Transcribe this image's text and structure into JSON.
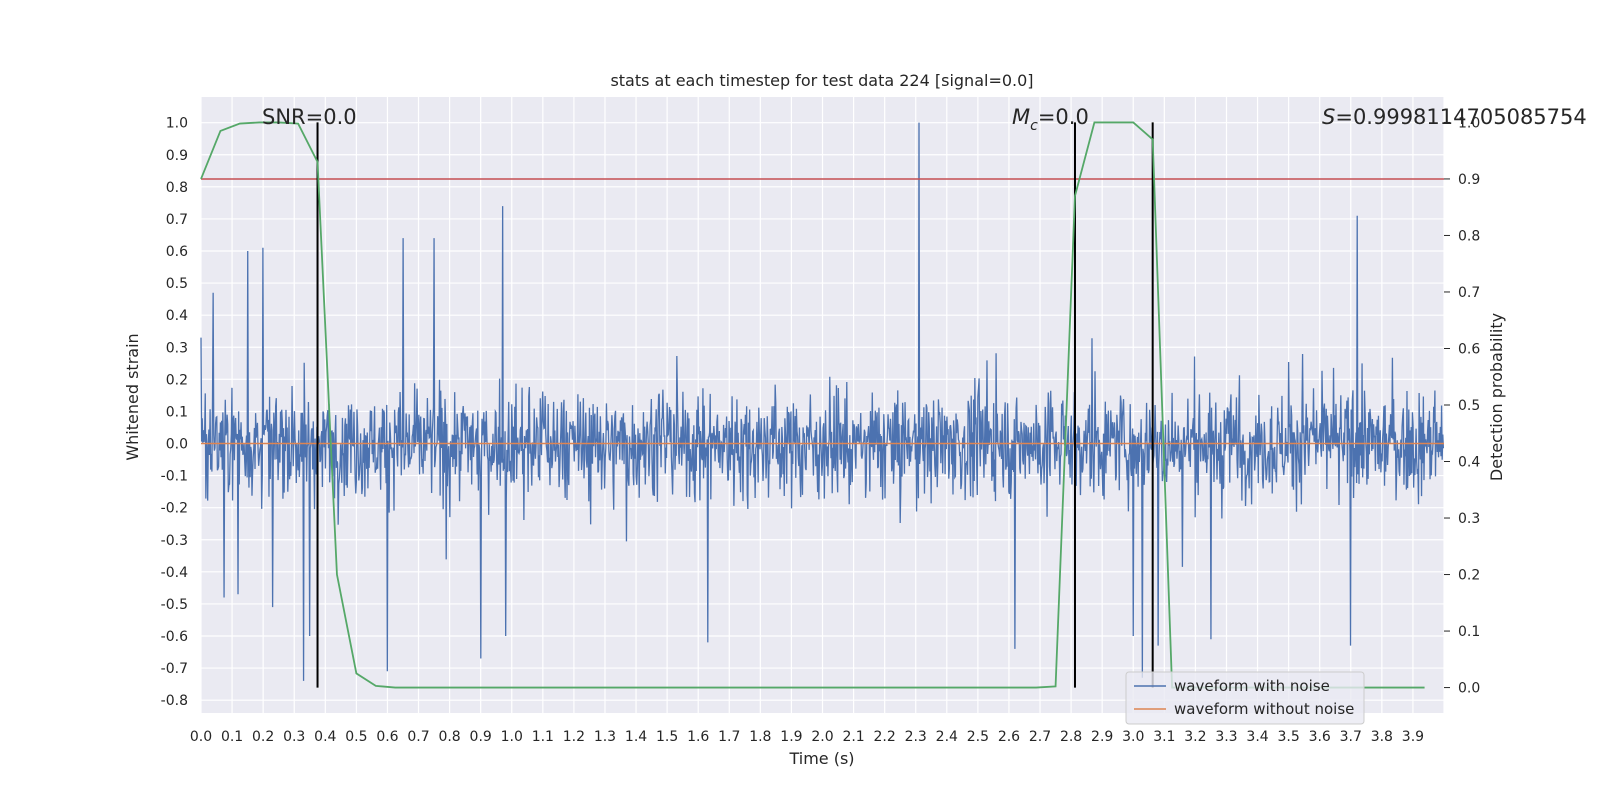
{
  "chart_data": {
    "type": "line",
    "title": "stats at each timestep for test data 224 [signal=0.0]",
    "xlabel": "Time (s)",
    "ylabel_left": "Whitened strain",
    "ylabel_right": "Detection probability",
    "xlim": [
      0.0,
      4.0
    ],
    "ylim_left": [
      -0.84,
      1.08
    ],
    "ylim_right": [
      -0.045,
      1.045
    ],
    "x_ticks": [
      0.0,
      0.1,
      0.2,
      0.3,
      0.4,
      0.5,
      0.6,
      0.7,
      0.8,
      0.9,
      1.0,
      1.1,
      1.2,
      1.3,
      1.4,
      1.5,
      1.6,
      1.7,
      1.8,
      1.9,
      2.0,
      2.1,
      2.2,
      2.3,
      2.4,
      2.5,
      2.6,
      2.7,
      2.8,
      2.9,
      3.0,
      3.1,
      3.2,
      3.3,
      3.4,
      3.5,
      3.6,
      3.7,
      3.8,
      3.9
    ],
    "y_ticks_left": [
      -0.8,
      -0.7,
      -0.6,
      -0.5,
      -0.4,
      -0.3,
      -0.2,
      -0.1,
      0.0,
      0.1,
      0.2,
      0.3,
      0.4,
      0.5,
      0.6,
      0.7,
      0.8,
      0.9,
      1.0
    ],
    "y_ticks_right": [
      0.0,
      0.1,
      0.2,
      0.3,
      0.4,
      0.5,
      0.6,
      0.7,
      0.8,
      0.9,
      1.0
    ],
    "grid": true,
    "legend_placement": "lower right",
    "annotations": {
      "snr": "SNR=0.0",
      "mc_symbol": "M",
      "mc_sub": "c",
      "mc_value": "=0.0",
      "s_symbol": "S",
      "s_value": "=0.9998114705085754"
    },
    "series": [
      {
        "name": "waveform with noise",
        "color": "#4c72b0",
        "axis": "left",
        "n_samples": 2048,
        "peak_samples": [
          [
            0.0,
            0.33
          ],
          [
            0.04,
            0.47
          ],
          [
            0.075,
            -0.48
          ],
          [
            0.12,
            -0.47
          ],
          [
            0.15,
            0.6
          ],
          [
            0.2,
            0.61
          ],
          [
            0.23,
            -0.51
          ],
          [
            0.33,
            -0.74
          ],
          [
            0.35,
            -0.6
          ],
          [
            0.6,
            -0.71
          ],
          [
            0.65,
            0.64
          ],
          [
            0.75,
            0.64
          ],
          [
            0.9,
            -0.67
          ],
          [
            0.97,
            0.74
          ],
          [
            0.98,
            -0.6
          ],
          [
            1.63,
            -0.62
          ],
          [
            2.31,
            1.0
          ],
          [
            2.62,
            -0.64
          ],
          [
            3.0,
            -0.6
          ],
          [
            3.03,
            -0.73
          ],
          [
            3.08,
            -0.63
          ],
          [
            3.25,
            -0.61
          ],
          [
            3.72,
            0.71
          ],
          [
            3.7,
            -0.63
          ]
        ]
      },
      {
        "name": "waveform without noise",
        "color": "#dd8452",
        "axis": "left",
        "x": [
          0.0,
          4.0
        ],
        "y": [
          0.0,
          0.0
        ]
      },
      {
        "name": "detection probability",
        "color": "#55a868",
        "axis": "right",
        "x": [
          0.0,
          0.0625,
          0.125,
          0.1875,
          0.25,
          0.3125,
          0.375,
          0.4375,
          0.5,
          0.5625,
          0.625,
          0.6875,
          0.75,
          2.6875,
          2.75,
          2.8125,
          2.875,
          2.9375,
          3.0,
          3.0625,
          3.125,
          3.1875,
          3.25,
          3.9375
        ],
        "y": [
          0.9,
          0.985,
          0.998,
          1.0,
          1.0,
          0.998,
          0.93,
          0.2,
          0.025,
          0.003,
          0.0,
          0.0,
          0.0,
          0.0,
          0.002,
          0.87,
          1.0,
          1.0,
          1.0,
          0.97,
          0.0,
          0.0,
          0.0,
          0.0
        ]
      }
    ],
    "threshold_line": {
      "color": "#c44e52",
      "axis": "right",
      "value": 0.9
    },
    "vertical_markers": {
      "color": "#000000",
      "x": [
        0.375,
        2.8125,
        3.0625
      ],
      "ymin": 0.0,
      "ymax": 1.0
    }
  }
}
